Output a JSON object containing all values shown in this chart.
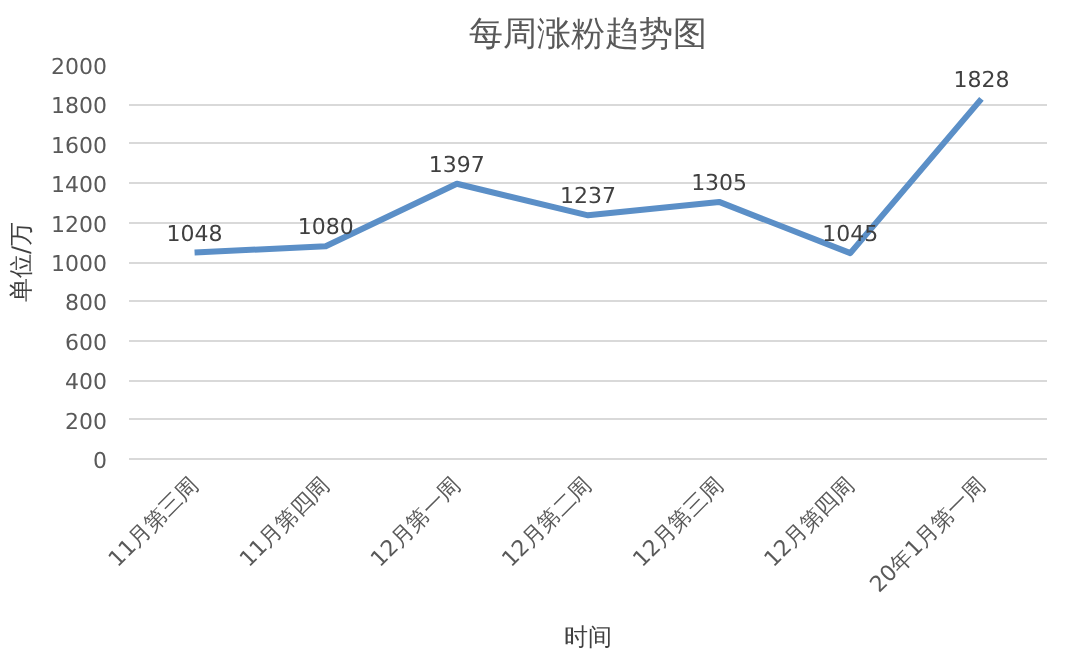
{
  "chart_data": {
    "type": "line",
    "title": "每周涨粉趋势图",
    "xlabel": "时间",
    "ylabel": "单位/万",
    "categories": [
      "11月第三周",
      "11月第四周",
      "12月第一周",
      "12月第二周",
      "12月第三周",
      "12月第四周",
      "20年1月第一周"
    ],
    "series": [
      {
        "color": "#5b8fc7",
        "values": [
          1048,
          1080,
          1397,
          1237,
          1305,
          1045,
          1828
        ]
      }
    ],
    "ylim": [
      0,
      2000
    ],
    "yticks": [
      0,
      200,
      400,
      600,
      800,
      1000,
      1200,
      1400,
      1600,
      1800,
      2000
    ],
    "grid": "y",
    "data_labels": true,
    "marker": "none",
    "line_style": "solid"
  }
}
